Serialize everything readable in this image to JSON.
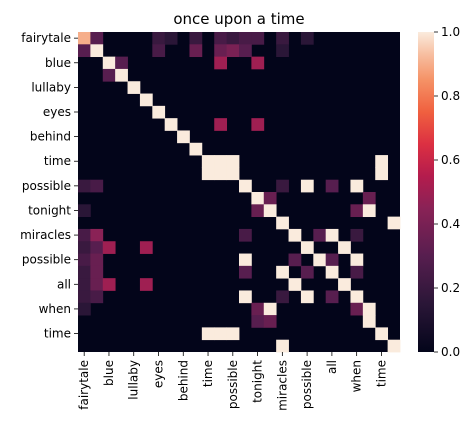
{
  "chart_data": {
    "type": "heatmap",
    "title": "once upon a time",
    "tokens": [
      "fairytale",
      "",
      "blue",
      "",
      "lullaby",
      "",
      "eyes",
      "",
      "behind",
      "",
      "time",
      "",
      "possible",
      "",
      "tonight",
      "",
      "miracles",
      "",
      "possible",
      "",
      "all",
      "",
      "when",
      "",
      "time",
      ""
    ],
    "x_tick_labels": [
      "fairytale",
      "blue",
      "lullaby",
      "eyes",
      "behind",
      "time",
      "possible",
      "tonight",
      "miracles",
      "possible",
      "all",
      "when",
      "time"
    ],
    "y_tick_labels": [
      "fairytale",
      "blue",
      "lullaby",
      "eyes",
      "behind",
      "time",
      "possible",
      "tonight",
      "miracles",
      "possible",
      "all",
      "when",
      "time"
    ],
    "tick_every": 2,
    "colorbar": {
      "min": 0.0,
      "max": 1.0,
      "ticks": [
        "0.0",
        "0.2",
        "0.4",
        "0.6",
        "0.8",
        "1.0"
      ],
      "colormap": "rocket"
    },
    "cells": [
      [
        0,
        0,
        0.9
      ],
      [
        0,
        1,
        0.3
      ],
      [
        0,
        6,
        0.2
      ],
      [
        0,
        7,
        0.15
      ],
      [
        0,
        9,
        0.2
      ],
      [
        0,
        11,
        0.25
      ],
      [
        0,
        12,
        0.2
      ],
      [
        0,
        13,
        0.25
      ],
      [
        0,
        14,
        0.25
      ],
      [
        0,
        16,
        0.2
      ],
      [
        0,
        18,
        0.15
      ],
      [
        1,
        0,
        0.3
      ],
      [
        1,
        1,
        1.0
      ],
      [
        1,
        6,
        0.25
      ],
      [
        1,
        9,
        0.35
      ],
      [
        1,
        11,
        0.35
      ],
      [
        1,
        12,
        0.4
      ],
      [
        1,
        13,
        0.3
      ],
      [
        1,
        16,
        0.15
      ],
      [
        2,
        2,
        1.0
      ],
      [
        2,
        3,
        0.3
      ],
      [
        2,
        11,
        0.5
      ],
      [
        2,
        14,
        0.5
      ],
      [
        3,
        2,
        0.3
      ],
      [
        3,
        3,
        1.0
      ],
      [
        4,
        4,
        1.0
      ],
      [
        5,
        5,
        1.0
      ],
      [
        6,
        6,
        1.0
      ],
      [
        7,
        7,
        1.0
      ],
      [
        7,
        11,
        0.5
      ],
      [
        7,
        14,
        0.5
      ],
      [
        8,
        8,
        1.0
      ],
      [
        9,
        9,
        1.0
      ],
      [
        10,
        10,
        1.0
      ],
      [
        10,
        11,
        1.0
      ],
      [
        10,
        12,
        1.0
      ],
      [
        10,
        24,
        1.0
      ],
      [
        11,
        10,
        1.0
      ],
      [
        11,
        11,
        1.0
      ],
      [
        11,
        12,
        1.0
      ],
      [
        11,
        24,
        1.0
      ],
      [
        12,
        0,
        0.2
      ],
      [
        12,
        1,
        0.25
      ],
      [
        12,
        13,
        1.0
      ],
      [
        12,
        16,
        0.2
      ],
      [
        12,
        18,
        1.0
      ],
      [
        12,
        20,
        0.3
      ],
      [
        12,
        22,
        1.0
      ],
      [
        13,
        14,
        1.0
      ],
      [
        13,
        15,
        0.35
      ],
      [
        13,
        23,
        0.35
      ],
      [
        14,
        0,
        0.15
      ],
      [
        14,
        14,
        0.35
      ],
      [
        14,
        15,
        1.0
      ],
      [
        14,
        22,
        0.35
      ],
      [
        14,
        23,
        1.0
      ],
      [
        15,
        16,
        1.0
      ],
      [
        15,
        25,
        1.0
      ],
      [
        16,
        0,
        0.25
      ],
      [
        16,
        1,
        0.45
      ],
      [
        16,
        13,
        0.25
      ],
      [
        16,
        17,
        1.0
      ],
      [
        16,
        19,
        0.3
      ],
      [
        16,
        20,
        1.0
      ],
      [
        16,
        22,
        0.2
      ],
      [
        17,
        0,
        0.2
      ],
      [
        17,
        1,
        0.3
      ],
      [
        17,
        2,
        0.5
      ],
      [
        17,
        5,
        0.5
      ],
      [
        17,
        18,
        1.0
      ],
      [
        17,
        21,
        1.0
      ],
      [
        18,
        0,
        0.25
      ],
      [
        18,
        1,
        0.35
      ],
      [
        18,
        13,
        1.0
      ],
      [
        18,
        17,
        0.3
      ],
      [
        18,
        19,
        1.0
      ],
      [
        18,
        20,
        0.3
      ],
      [
        18,
        22,
        1.0
      ],
      [
        19,
        0,
        0.2
      ],
      [
        19,
        1,
        0.35
      ],
      [
        19,
        13,
        0.3
      ],
      [
        19,
        16,
        1.0
      ],
      [
        19,
        18,
        0.3
      ],
      [
        19,
        20,
        1.0
      ],
      [
        19,
        22,
        0.25
      ],
      [
        20,
        0,
        0.2
      ],
      [
        20,
        1,
        0.35
      ],
      [
        20,
        2,
        0.5
      ],
      [
        20,
        5,
        0.5
      ],
      [
        20,
        17,
        1.0
      ],
      [
        20,
        21,
        1.0
      ],
      [
        21,
        0,
        0.2
      ],
      [
        21,
        1,
        0.25
      ],
      [
        21,
        13,
        1.0
      ],
      [
        21,
        16,
        0.2
      ],
      [
        21,
        18,
        1.0
      ],
      [
        21,
        20,
        0.3
      ],
      [
        21,
        22,
        1.0
      ],
      [
        22,
        0,
        0.15
      ],
      [
        22,
        14,
        0.35
      ],
      [
        22,
        15,
        1.0
      ],
      [
        22,
        22,
        0.35
      ],
      [
        22,
        23,
        1.0
      ],
      [
        23,
        14,
        0.3
      ],
      [
        23,
        15,
        0.35
      ],
      [
        23,
        23,
        1.0
      ],
      [
        24,
        10,
        1.0
      ],
      [
        24,
        11,
        1.0
      ],
      [
        24,
        12,
        1.0
      ],
      [
        24,
        24,
        1.0
      ],
      [
        25,
        16,
        1.0
      ],
      [
        25,
        25,
        1.0
      ]
    ]
  }
}
